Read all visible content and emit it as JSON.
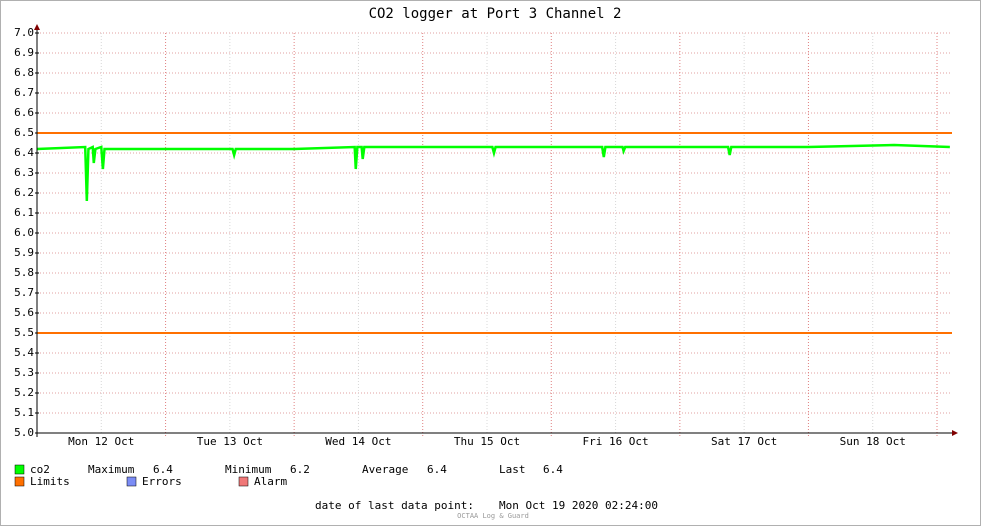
{
  "chart_data": {
    "type": "line",
    "title": "CO2 logger at Port 3 Channel 2",
    "x": [
      0,
      9,
      9.3,
      9.6,
      10.4,
      10.6,
      10.9,
      12.0,
      12.3,
      12.6,
      24,
      36.5,
      36.8,
      37.1,
      48,
      59.3,
      59.5,
      59.8,
      60.6,
      60.8,
      61.1,
      72,
      85.0,
      85.3,
      85.6,
      96,
      105.5,
      105.8,
      106.1,
      109.3,
      109.5,
      109.8,
      120,
      129.0,
      129.3,
      129.6,
      144,
      160,
      170.4
    ],
    "series": [
      {
        "name": "co2",
        "color": "#00ff00",
        "values": [
          6.42,
          6.43,
          6.16,
          6.42,
          6.43,
          6.35,
          6.42,
          6.43,
          6.32,
          6.42,
          6.42,
          6.42,
          6.39,
          6.42,
          6.42,
          6.43,
          6.32,
          6.43,
          6.43,
          6.37,
          6.43,
          6.43,
          6.43,
          6.4,
          6.43,
          6.43,
          6.43,
          6.38,
          6.43,
          6.43,
          6.41,
          6.43,
          6.43,
          6.43,
          6.39,
          6.43,
          6.43,
          6.44,
          6.43
        ]
      }
    ],
    "limits": {
      "name": "Limits",
      "color": "#ff7000",
      "values": [
        6.5,
        5.5
      ]
    },
    "legend_extra": [
      {
        "name": "Errors",
        "color": "#7b8cf5"
      },
      {
        "name": "Alarm",
        "color": "#f07878"
      }
    ],
    "stats": [
      {
        "label": "Maximum",
        "value": 6.4
      },
      {
        "label": "Minimum",
        "value": 6.2
      },
      {
        "label": "Average",
        "value": 6.4
      },
      {
        "label": "Last",
        "value": 6.4
      }
    ],
    "xlim": [
      0,
      170.8
    ],
    "xticks": [
      {
        "value": 12,
        "label": "Mon 12 Oct"
      },
      {
        "value": 36,
        "label": "Tue 13 Oct"
      },
      {
        "value": 60,
        "label": "Wed 14 Oct"
      },
      {
        "value": 84,
        "label": "Thu 15 Oct"
      },
      {
        "value": 108,
        "label": "Fri 16 Oct"
      },
      {
        "value": 132,
        "label": "Sat 17 Oct"
      },
      {
        "value": 156,
        "label": "Sun 18 Oct"
      }
    ],
    "xgrid": [
      24,
      48,
      72,
      96,
      120,
      144,
      168
    ],
    "ylim": [
      5.0,
      7.0
    ],
    "yticks": [
      {
        "value": 5,
        "label": "5.0"
      },
      5.1,
      5.2,
      5.3,
      5.4,
      5.5,
      5.6,
      5.7,
      5.8,
      5.9,
      {
        "value": 6,
        "label": "6.0"
      },
      6.1,
      6.2,
      6.3,
      6.4,
      6.5,
      6.6,
      6.7,
      6.8,
      6.9,
      {
        "value": 7,
        "label": "7.0"
      }
    ],
    "grid": true,
    "footer_label": "date of last data point:",
    "footer_value": "Mon Oct 19 2020 02:24:00",
    "watermark": "OCTAA Log & Guard"
  }
}
